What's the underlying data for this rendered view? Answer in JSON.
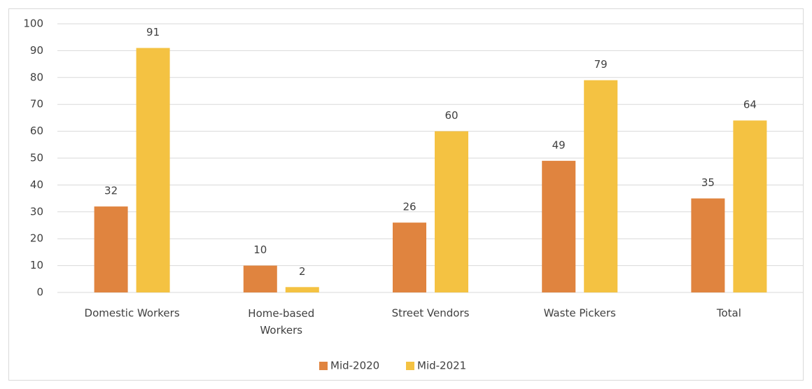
{
  "chart_data": {
    "type": "bar",
    "categories": [
      "Domestic Workers",
      "Home-based Workers",
      "Street Vendors",
      "Waste Pickers",
      "Total"
    ],
    "series": [
      {
        "name": "Mid-2020",
        "color": "#e0843f",
        "values": [
          32,
          10,
          26,
          49,
          35
        ]
      },
      {
        "name": "Mid-2021",
        "color": "#f4c242",
        "values": [
          91,
          2,
          60,
          79,
          64
        ]
      }
    ],
    "ylim": [
      0,
      100
    ],
    "yticks": [
      0,
      10,
      20,
      30,
      40,
      50,
      60,
      70,
      80,
      90,
      100
    ],
    "grid": true,
    "legend": "bottom"
  }
}
